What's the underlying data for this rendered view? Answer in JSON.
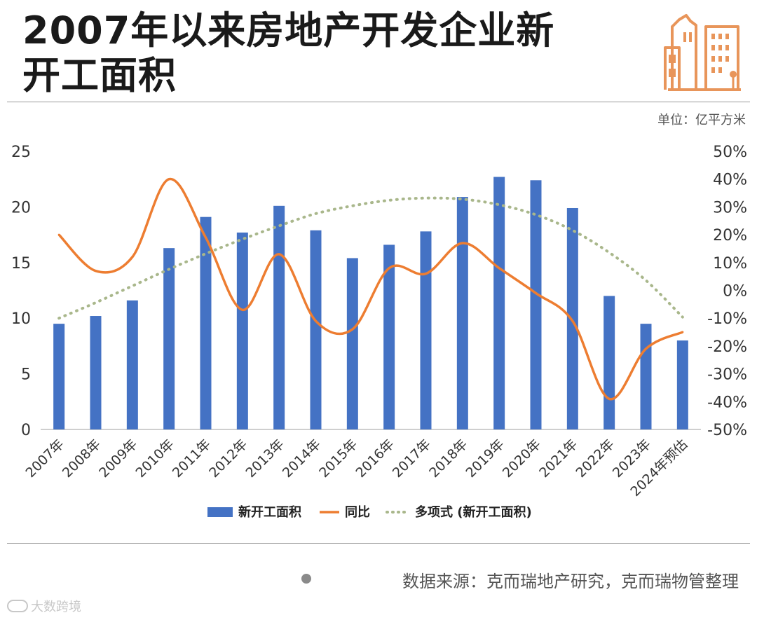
{
  "header": {
    "title_line1": "2007年以来房地产开发企业新",
    "title_line2": "开工面积",
    "unit": "单位：亿平方米",
    "icon": "building-icon",
    "accent_color": "#E8955A"
  },
  "chart_data": {
    "type": "bar",
    "categories": [
      "2007年",
      "2008年",
      "2009年",
      "2010年",
      "2011年",
      "2012年",
      "2013年",
      "2014年",
      "2015年",
      "2016年",
      "2017年",
      "2018年",
      "2019年",
      "2020年",
      "2021年",
      "2022年",
      "2023年",
      "2024年预估"
    ],
    "series": [
      {
        "name": "新开工面积",
        "type": "bar",
        "axis": "left",
        "color": "#4472C4",
        "values": [
          9.5,
          10.2,
          11.6,
          16.3,
          19.1,
          17.7,
          20.1,
          17.9,
          15.4,
          16.6,
          17.8,
          20.9,
          22.7,
          22.4,
          19.9,
          12.0,
          9.5,
          8.0
        ]
      },
      {
        "name": "同比",
        "type": "line",
        "axis": "right",
        "unit": "%",
        "color": "#ED7D31",
        "values": [
          20,
          7,
          12,
          40,
          19,
          -7,
          13,
          -11,
          -14,
          8,
          6,
          17,
          8,
          -1,
          -11,
          -39,
          -21,
          -15
        ]
      },
      {
        "name": "多项式 (新开工面积)",
        "type": "trendline",
        "axis": "left",
        "color": "#A9B78B",
        "values": [
          10.0,
          11.4,
          12.9,
          14.4,
          15.8,
          17.1,
          18.3,
          19.4,
          20.1,
          20.6,
          20.8,
          20.7,
          20.2,
          19.3,
          17.9,
          15.9,
          13.4,
          10.1
        ]
      }
    ],
    "ylim_left": [
      0,
      25
    ],
    "yticks_left": [
      "0",
      "5",
      "10",
      "15",
      "20",
      "25"
    ],
    "ylim_right": [
      -50,
      50
    ],
    "yticks_right": [
      "-50%",
      "-40%",
      "-30%",
      "-20%",
      "-10%",
      "0%",
      "10%",
      "20%",
      "30%",
      "40%",
      "50%"
    ],
    "legend_position": "bottom",
    "grid": false
  },
  "footer": {
    "source": "数据来源：克而瑞地产研究，克而瑞物管整理",
    "watermark": "大数跨境"
  }
}
